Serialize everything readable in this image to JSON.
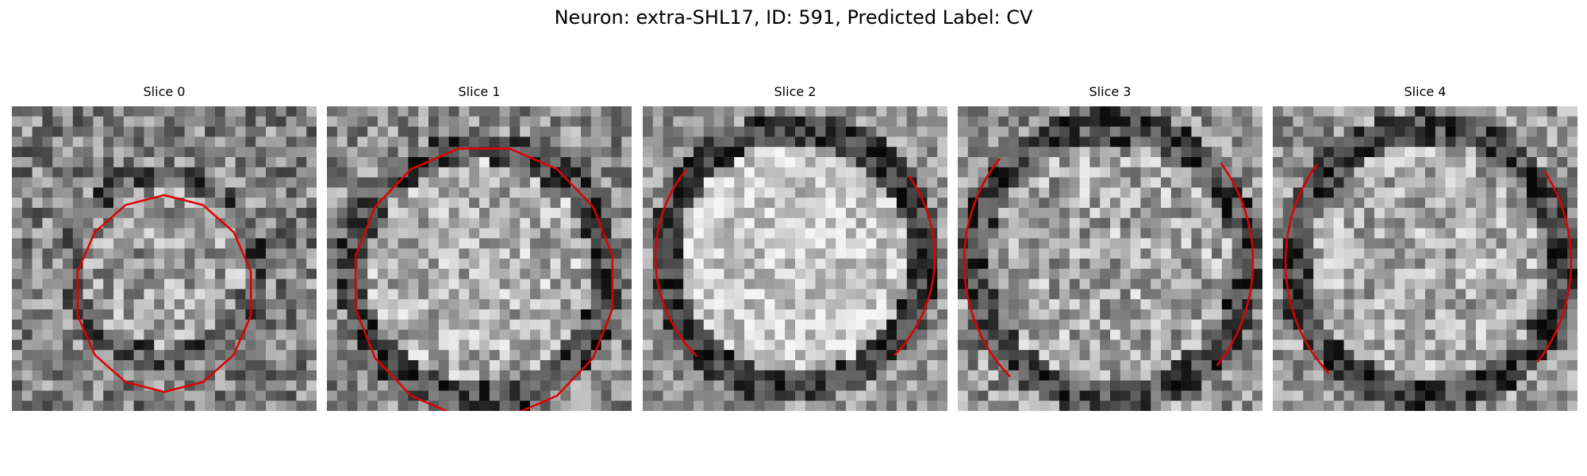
{
  "figure": {
    "title": "Neuron: extra-SHL17, ID: 591, Predicted Label: CV"
  },
  "panels": [
    {
      "title": "Slice 0"
    },
    {
      "title": "Slice 1"
    },
    {
      "title": "Slice 2"
    },
    {
      "title": "Slice 3"
    },
    {
      "title": "Slice 4"
    }
  ],
  "colors": {
    "contour": "#e00000",
    "background": "#ffffff"
  }
}
